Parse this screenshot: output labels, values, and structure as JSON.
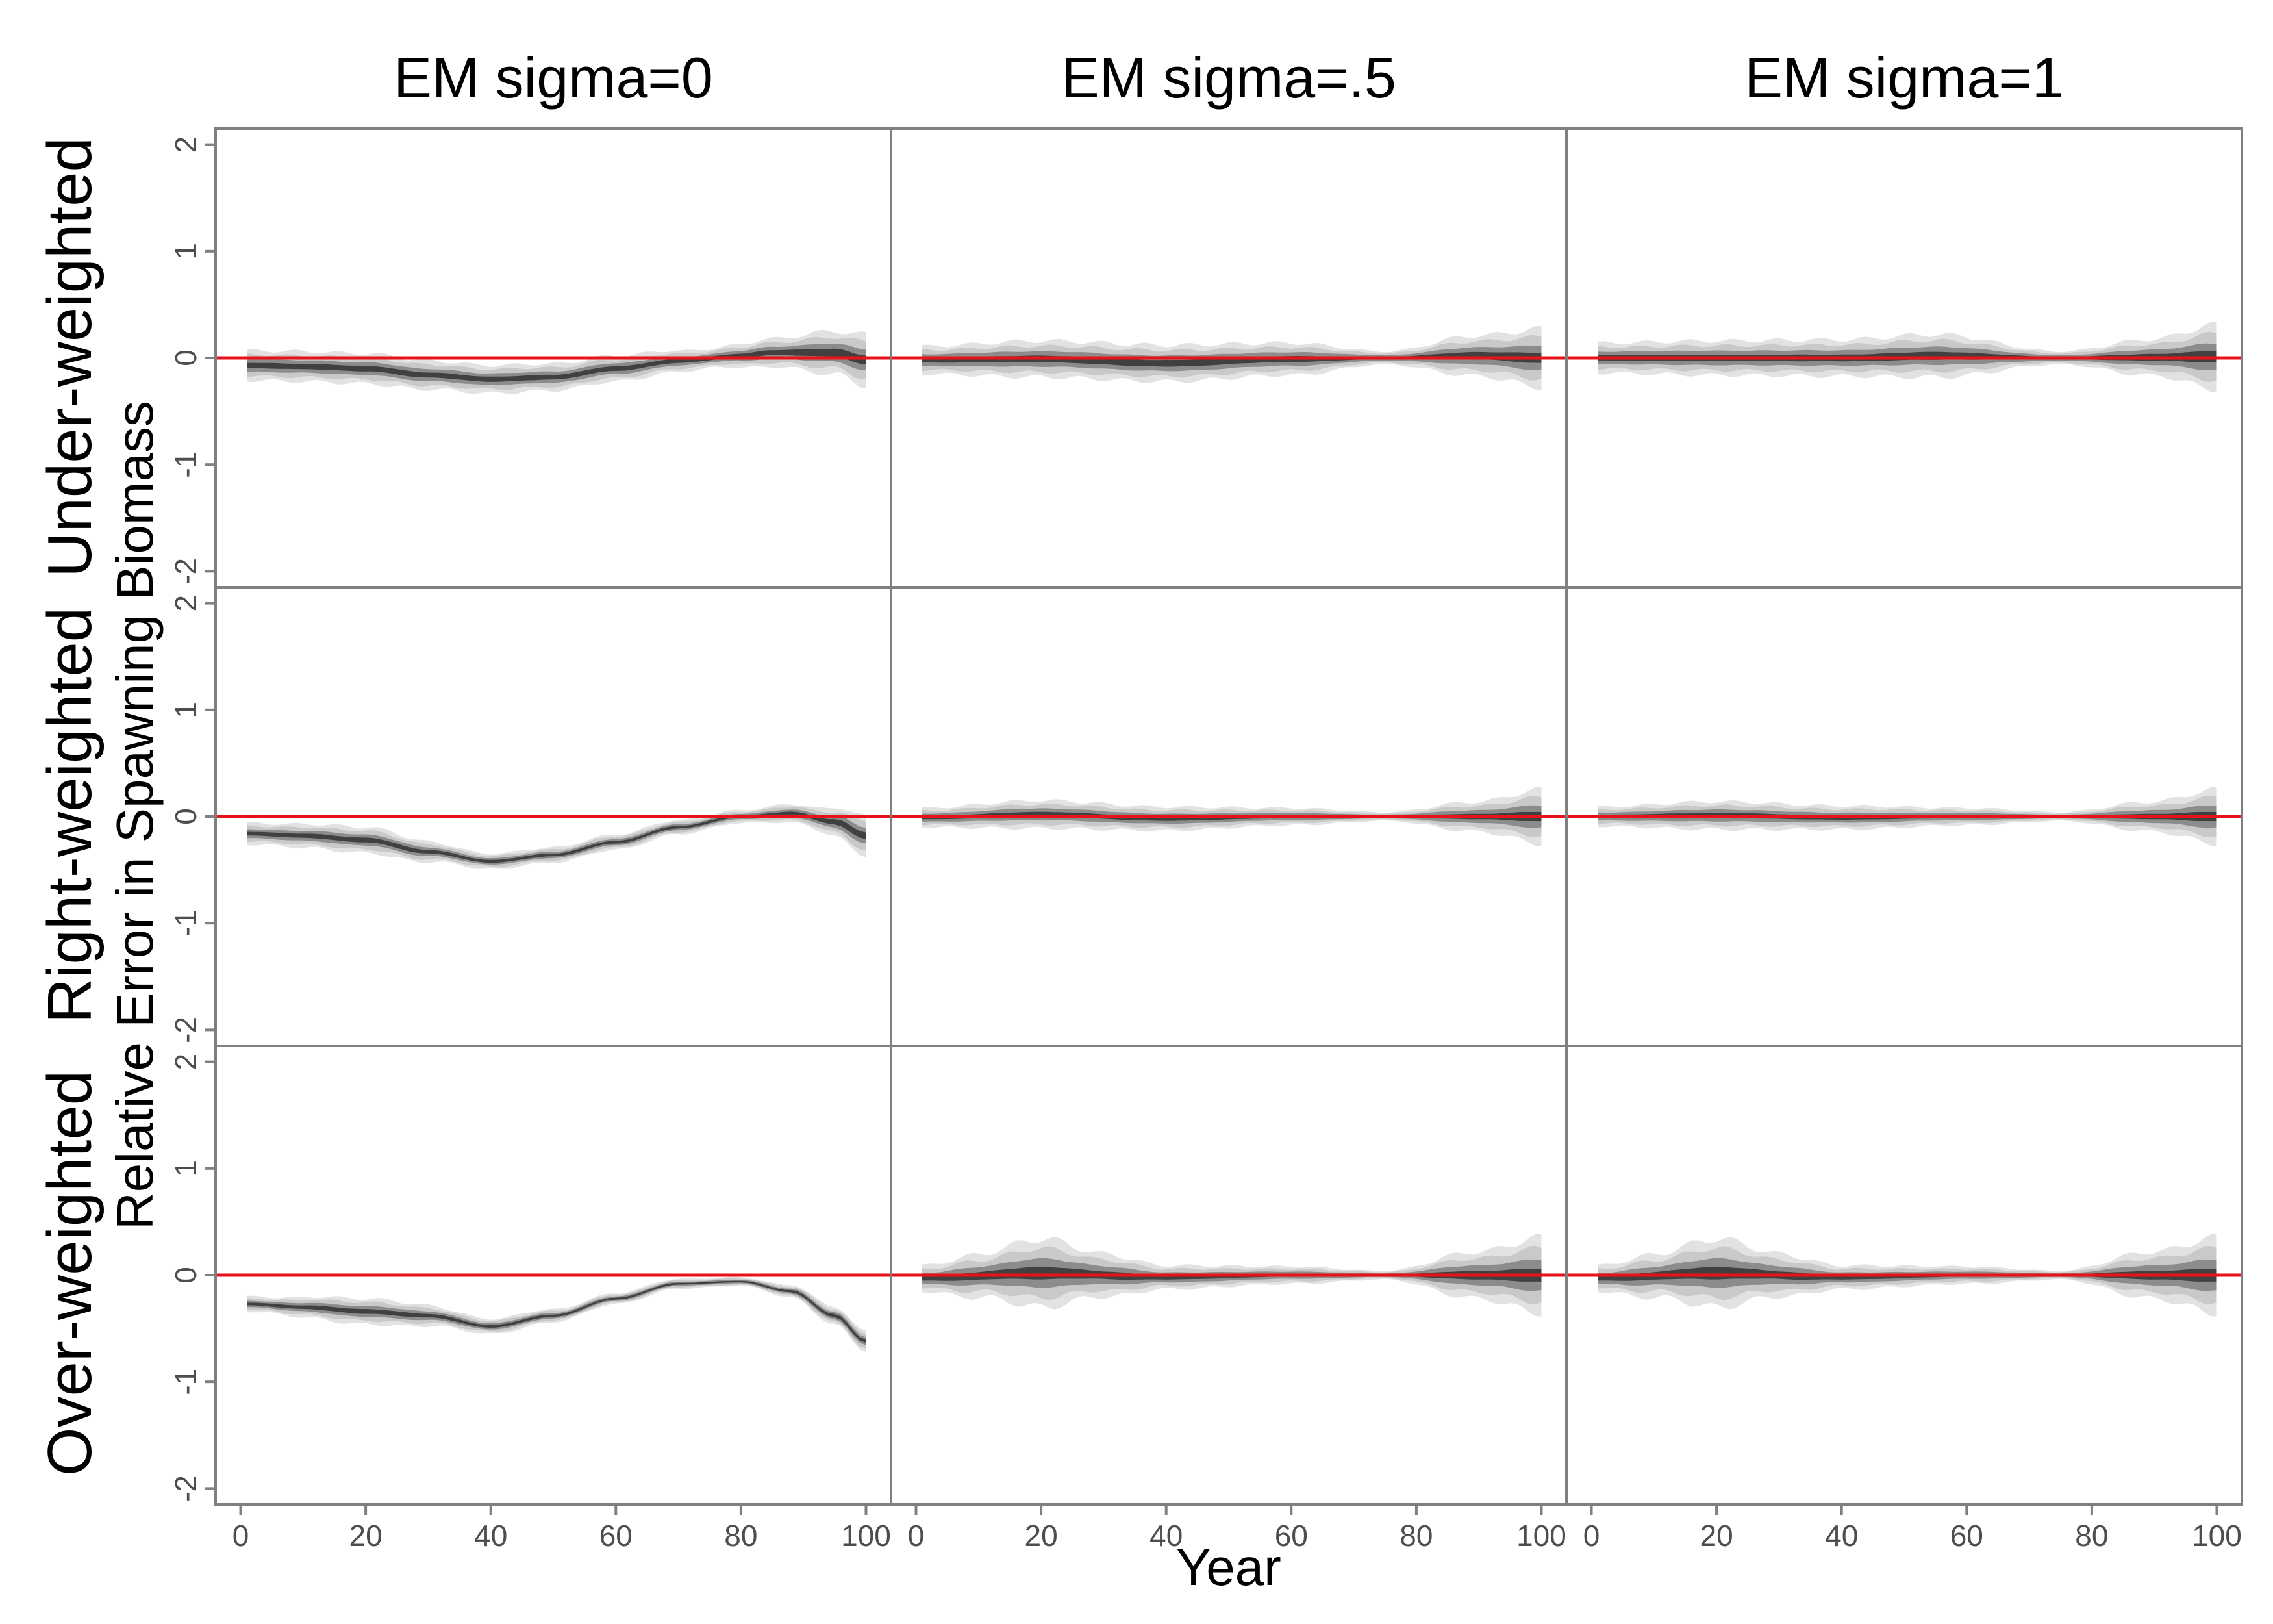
{
  "chart_data": {
    "type": "area",
    "ylabel": "Relative Error in Spawning Biomass",
    "xlabel": "Year",
    "column_titles": [
      "EM sigma=0",
      "EM sigma=.5",
      "EM sigma=1"
    ],
    "row_titles": [
      "Under-weighted",
      "Right-weighted",
      "Over-weighted"
    ],
    "x_ticks": [
      0,
      20,
      40,
      60,
      80,
      100
    ],
    "y_ticks": [
      -2,
      -1,
      0,
      1,
      2
    ],
    "xlim": [
      -4,
      104
    ],
    "ylim": [
      -2.15,
      2.15
    ],
    "reference_line": {
      "y": 0,
      "color": "#e8121b"
    },
    "band_colors": [
      "#e2e2e2",
      "#c9c9c9",
      "#8c8c8c",
      "#404040"
    ],
    "grid": false,
    "panels": [
      {
        "row": 0,
        "col": 0,
        "median": [
          [
            1,
            -0.07
          ],
          [
            10,
            -0.08
          ],
          [
            20,
            -0.1
          ],
          [
            30,
            -0.16
          ],
          [
            40,
            -0.2
          ],
          [
            50,
            -0.18
          ],
          [
            60,
            -0.1
          ],
          [
            70,
            -0.03
          ],
          [
            80,
            0.02
          ],
          [
            85,
            0.05
          ],
          [
            90,
            0.05
          ],
          [
            95,
            0.05
          ],
          [
            100,
            -0.02
          ]
        ],
        "spread": [
          [
            1,
            0.14
          ],
          [
            20,
            0.14
          ],
          [
            40,
            0.13
          ],
          [
            60,
            0.12
          ],
          [
            75,
            0.09
          ],
          [
            85,
            0.13
          ],
          [
            95,
            0.2
          ],
          [
            100,
            0.24
          ]
        ]
      },
      {
        "row": 0,
        "col": 1,
        "median": [
          [
            1,
            -0.02
          ],
          [
            20,
            -0.01
          ],
          [
            40,
            -0.05
          ],
          [
            60,
            -0.01
          ],
          [
            75,
            0.0
          ],
          [
            90,
            0.02
          ],
          [
            100,
            0.0
          ]
        ],
        "spread": [
          [
            1,
            0.13
          ],
          [
            20,
            0.17
          ],
          [
            40,
            0.17
          ],
          [
            60,
            0.15
          ],
          [
            75,
            0.06
          ],
          [
            90,
            0.19
          ],
          [
            100,
            0.27
          ]
        ]
      },
      {
        "row": 0,
        "col": 2,
        "median": [
          [
            1,
            0.0
          ],
          [
            20,
            0.0
          ],
          [
            40,
            0.0
          ],
          [
            55,
            0.02
          ],
          [
            75,
            0.0
          ],
          [
            100,
            0.01
          ]
        ],
        "spread": [
          [
            1,
            0.14
          ],
          [
            20,
            0.16
          ],
          [
            40,
            0.17
          ],
          [
            55,
            0.2
          ],
          [
            75,
            0.06
          ],
          [
            90,
            0.17
          ],
          [
            100,
            0.3
          ]
        ]
      },
      {
        "row": 1,
        "col": 0,
        "median": [
          [
            1,
            -0.16
          ],
          [
            10,
            -0.18
          ],
          [
            20,
            -0.22
          ],
          [
            30,
            -0.33
          ],
          [
            40,
            -0.42
          ],
          [
            50,
            -0.36
          ],
          [
            60,
            -0.24
          ],
          [
            70,
            -0.1
          ],
          [
            80,
            0.0
          ],
          [
            88,
            0.03
          ],
          [
            95,
            -0.05
          ],
          [
            100,
            -0.18
          ]
        ],
        "spread": [
          [
            1,
            0.1
          ],
          [
            20,
            0.12
          ],
          [
            40,
            0.07
          ],
          [
            60,
            0.07
          ],
          [
            80,
            0.06
          ],
          [
            90,
            0.09
          ],
          [
            100,
            0.18
          ]
        ]
      },
      {
        "row": 1,
        "col": 1,
        "median": [
          [
            1,
            -0.01
          ],
          [
            20,
            0.02
          ],
          [
            40,
            -0.02
          ],
          [
            60,
            0.0
          ],
          [
            75,
            0.0
          ],
          [
            100,
            0.0
          ]
        ],
        "spread": [
          [
            1,
            0.09
          ],
          [
            20,
            0.13
          ],
          [
            40,
            0.11
          ],
          [
            60,
            0.08
          ],
          [
            75,
            0.04
          ],
          [
            90,
            0.14
          ],
          [
            100,
            0.25
          ]
        ]
      },
      {
        "row": 1,
        "col": 2,
        "median": [
          [
            1,
            0.0
          ],
          [
            20,
            0.01
          ],
          [
            40,
            -0.01
          ],
          [
            60,
            0.0
          ],
          [
            75,
            0.0
          ],
          [
            100,
            0.0
          ]
        ],
        "spread": [
          [
            1,
            0.09
          ],
          [
            20,
            0.13
          ],
          [
            40,
            0.11
          ],
          [
            60,
            0.08
          ],
          [
            75,
            0.04
          ],
          [
            90,
            0.14
          ],
          [
            100,
            0.25
          ]
        ]
      },
      {
        "row": 2,
        "col": 0,
        "median": [
          [
            1,
            -0.27
          ],
          [
            10,
            -0.3
          ],
          [
            20,
            -0.34
          ],
          [
            30,
            -0.38
          ],
          [
            40,
            -0.48
          ],
          [
            50,
            -0.38
          ],
          [
            60,
            -0.22
          ],
          [
            70,
            -0.08
          ],
          [
            80,
            -0.06
          ],
          [
            88,
            -0.15
          ],
          [
            95,
            -0.38
          ],
          [
            100,
            -0.62
          ]
        ],
        "spread": [
          [
            1,
            0.07
          ],
          [
            20,
            0.12
          ],
          [
            40,
            0.07
          ],
          [
            60,
            0.05
          ],
          [
            80,
            0.04
          ],
          [
            100,
            0.09
          ]
        ]
      },
      {
        "row": 2,
        "col": 1,
        "median": [
          [
            1,
            -0.03
          ],
          [
            20,
            0.02
          ],
          [
            40,
            -0.02
          ],
          [
            60,
            0.0
          ],
          [
            75,
            0.0
          ],
          [
            100,
            0.0
          ]
        ],
        "spread": [
          [
            1,
            0.12
          ],
          [
            10,
            0.2
          ],
          [
            20,
            0.32
          ],
          [
            30,
            0.2
          ],
          [
            40,
            0.11
          ],
          [
            60,
            0.08
          ],
          [
            75,
            0.04
          ],
          [
            90,
            0.22
          ],
          [
            100,
            0.35
          ]
        ]
      },
      {
        "row": 2,
        "col": 2,
        "median": [
          [
            1,
            -0.03
          ],
          [
            20,
            0.02
          ],
          [
            40,
            -0.02
          ],
          [
            60,
            0.0
          ],
          [
            75,
            0.0
          ],
          [
            100,
            0.0
          ]
        ],
        "spread": [
          [
            1,
            0.12
          ],
          [
            10,
            0.2
          ],
          [
            20,
            0.32
          ],
          [
            30,
            0.2
          ],
          [
            40,
            0.11
          ],
          [
            60,
            0.08
          ],
          [
            75,
            0.04
          ],
          [
            90,
            0.22
          ],
          [
            100,
            0.35
          ]
        ]
      }
    ]
  }
}
